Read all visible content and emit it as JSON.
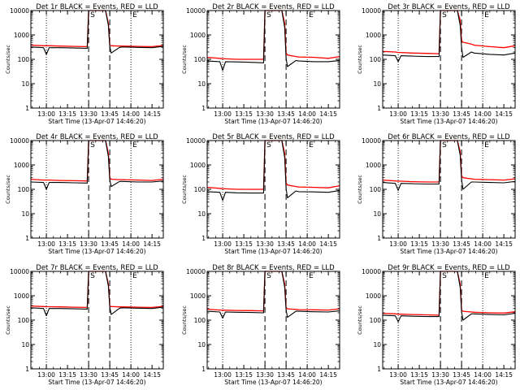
{
  "figure": {
    "x_tick_labels": [
      "13:00",
      "13:15",
      "13:30",
      "13:45",
      "14:00",
      "14:15"
    ],
    "y_tick_labels": [
      "1",
      "10",
      "100",
      "1000",
      "10000"
    ],
    "ylabel": "Counts/sec",
    "xlabel": "Start Time (13-Apr-07 14:46:20)",
    "colors": {
      "events": "#000000",
      "lld": "#ff0000",
      "axes": "#000000"
    }
  },
  "chart_data": [
    {
      "type": "line",
      "title": "Det 1r BLACK = Events, RED = LLD",
      "y_scale": "log",
      "ylim": [
        1,
        10000
      ],
      "xlim": [
        "12:49",
        "14:23"
      ],
      "grid": false,
      "markers": {
        "dotted": [
          "13:00",
          "14:00"
        ],
        "dashed": [
          "13:30",
          "13:45"
        ],
        "letters": [
          "S",
          "E"
        ]
      },
      "x": [
        "12:49",
        "12:58",
        "13:00",
        "13:02",
        "13:10",
        "13:20",
        "13:29",
        "13:30",
        "13:33",
        "13:40",
        "13:42",
        "13:44",
        "13:45",
        "13:46",
        "13:52",
        "13:54",
        "14:05",
        "14:15",
        "14:23"
      ],
      "series": [
        {
          "name": "Events",
          "values": [
            320,
            300,
            160,
            300,
            300,
            290,
            285,
            10000,
            10000,
            10000,
            10000,
            2500,
            350,
            180,
            310,
            320,
            310,
            300,
            340
          ]
        },
        {
          "name": "LLD",
          "values": [
            380,
            360,
            360,
            360,
            350,
            340,
            330,
            10000,
            10000,
            10000,
            10000,
            3000,
            380,
            360,
            350,
            350,
            340,
            330,
            370
          ]
        }
      ]
    },
    {
      "type": "line",
      "title": "Det 2r BLACK = Events, RED = LLD",
      "y_scale": "log",
      "ylim": [
        1,
        10000
      ],
      "xlim": [
        "12:49",
        "14:23"
      ],
      "grid": false,
      "markers": {
        "dotted": [
          "13:00",
          "14:00"
        ],
        "dashed": [
          "13:30",
          "13:45"
        ],
        "letters": [
          "S",
          "E"
        ]
      },
      "x": [
        "12:49",
        "12:58",
        "13:00",
        "13:02",
        "13:10",
        "13:20",
        "13:29",
        "13:30",
        "13:33",
        "13:40",
        "13:42",
        "13:44",
        "13:45",
        "13:46",
        "13:52",
        "13:54",
        "14:05",
        "14:15",
        "14:23"
      ],
      "series": [
        {
          "name": "Events",
          "values": [
            85,
            80,
            35,
            80,
            78,
            75,
            72,
            10000,
            10000,
            10000,
            10000,
            2000,
            110,
            50,
            90,
            85,
            80,
            80,
            90
          ]
        },
        {
          "name": "LLD",
          "values": [
            120,
            110,
            105,
            105,
            100,
            100,
            100,
            10000,
            10000,
            10000,
            10000,
            3000,
            180,
            150,
            130,
            125,
            120,
            110,
            130
          ]
        }
      ]
    },
    {
      "type": "line",
      "title": "Det 3r BLACK = Events, RED = LLD",
      "y_scale": "log",
      "ylim": [
        1,
        10000
      ],
      "xlim": [
        "12:49",
        "14:23"
      ],
      "grid": false,
      "markers": {
        "dotted": [
          "13:00",
          "14:00"
        ],
        "dashed": [
          "13:30",
          "13:45"
        ],
        "letters": [
          "S",
          "E"
        ]
      },
      "x": [
        "12:49",
        "12:58",
        "13:00",
        "13:02",
        "13:10",
        "13:20",
        "13:29",
        "13:30",
        "13:33",
        "13:40",
        "13:42",
        "13:44",
        "13:45",
        "13:46",
        "13:52",
        "13:54",
        "14:05",
        "14:15",
        "14:23"
      ],
      "series": [
        {
          "name": "Events",
          "values": [
            150,
            140,
            80,
            140,
            135,
            130,
            130,
            10000,
            10000,
            10000,
            10000,
            2500,
            300,
            120,
            200,
            180,
            160,
            150,
            180
          ]
        },
        {
          "name": "LLD",
          "values": [
            210,
            200,
            190,
            190,
            180,
            175,
            170,
            10000,
            10000,
            10000,
            10000,
            4000,
            600,
            500,
            420,
            380,
            330,
            300,
            360
          ]
        }
      ]
    },
    {
      "type": "line",
      "title": "Det 4r BLACK = Events, RED = LLD",
      "y_scale": "log",
      "ylim": [
        1,
        10000
      ],
      "xlim": [
        "12:49",
        "14:23"
      ],
      "grid": false,
      "markers": {
        "dotted": [
          "13:00",
          "14:00"
        ],
        "dashed": [
          "13:30",
          "13:45"
        ],
        "letters": [
          "S",
          "E"
        ]
      },
      "x": [
        "12:49",
        "12:58",
        "13:00",
        "13:02",
        "13:10",
        "13:20",
        "13:29",
        "13:30",
        "13:33",
        "13:40",
        "13:42",
        "13:44",
        "13:45",
        "13:46",
        "13:52",
        "13:54",
        "14:05",
        "14:15",
        "14:23"
      ],
      "series": [
        {
          "name": "Events",
          "values": [
            200,
            190,
            100,
            190,
            190,
            185,
            180,
            10000,
            10000,
            10000,
            10000,
            2200,
            250,
            130,
            210,
            210,
            200,
            200,
            220
          ]
        },
        {
          "name": "LLD",
          "values": [
            260,
            240,
            240,
            240,
            230,
            225,
            220,
            10000,
            10000,
            10000,
            10000,
            3000,
            300,
            260,
            250,
            250,
            240,
            230,
            260
          ]
        }
      ]
    },
    {
      "type": "line",
      "title": "Det 5r BLACK = Events, RED = LLD",
      "y_scale": "log",
      "ylim": [
        1,
        10000
      ],
      "xlim": [
        "12:49",
        "14:23"
      ],
      "grid": false,
      "markers": {
        "dotted": [
          "13:00",
          "14:00"
        ],
        "dashed": [
          "13:30",
          "13:45"
        ],
        "letters": [
          "S",
          "E"
        ]
      },
      "x": [
        "12:49",
        "12:58",
        "13:00",
        "13:02",
        "13:10",
        "13:20",
        "13:29",
        "13:30",
        "13:33",
        "13:40",
        "13:42",
        "13:44",
        "13:45",
        "13:46",
        "13:52",
        "13:54",
        "14:05",
        "14:15",
        "14:23"
      ],
      "series": [
        {
          "name": "Events",
          "values": [
            80,
            75,
            35,
            75,
            72,
            70,
            70,
            10000,
            10000,
            10000,
            10000,
            2000,
            110,
            45,
            85,
            80,
            78,
            75,
            90
          ]
        },
        {
          "name": "LLD",
          "values": [
            120,
            110,
            105,
            105,
            100,
            100,
            100,
            10000,
            10000,
            10000,
            10000,
            3000,
            180,
            150,
            130,
            125,
            120,
            115,
            140
          ]
        }
      ]
    },
    {
      "type": "line",
      "title": "Det 6r BLACK = Events, RED = LLD",
      "y_scale": "log",
      "ylim": [
        1,
        10000
      ],
      "xlim": [
        "12:49",
        "14:23"
      ],
      "grid": false,
      "markers": {
        "dotted": [
          "13:00",
          "14:00"
        ],
        "dashed": [
          "13:30",
          "13:45"
        ],
        "letters": [
          "S",
          "E"
        ]
      },
      "x": [
        "12:49",
        "12:58",
        "13:00",
        "13:02",
        "13:10",
        "13:20",
        "13:29",
        "13:30",
        "13:33",
        "13:40",
        "13:42",
        "13:44",
        "13:45",
        "13:46",
        "13:52",
        "13:54",
        "14:05",
        "14:15",
        "14:23"
      ],
      "series": [
        {
          "name": "Events",
          "values": [
            190,
            175,
            90,
            175,
            170,
            165,
            165,
            10000,
            10000,
            10000,
            10000,
            2500,
            250,
            100,
            200,
            200,
            190,
            185,
            210
          ]
        },
        {
          "name": "LLD",
          "values": [
            240,
            220,
            215,
            215,
            205,
            200,
            200,
            10000,
            10000,
            10000,
            10000,
            3500,
            360,
            300,
            270,
            260,
            250,
            240,
            270
          ]
        }
      ]
    },
    {
      "type": "line",
      "title": "Det 7r BLACK = Events, RED = LLD",
      "y_scale": "log",
      "ylim": [
        1,
        10000
      ],
      "xlim": [
        "12:49",
        "14:23"
      ],
      "grid": false,
      "markers": {
        "dotted": [
          "13:00",
          "14:00"
        ],
        "dashed": [
          "13:30",
          "13:45"
        ],
        "letters": [
          "S",
          "E"
        ]
      },
      "x": [
        "12:49",
        "12:58",
        "13:00",
        "13:02",
        "13:10",
        "13:20",
        "13:29",
        "13:30",
        "13:33",
        "13:40",
        "13:42",
        "13:44",
        "13:45",
        "13:46",
        "13:52",
        "13:54",
        "14:05",
        "14:15",
        "14:23"
      ],
      "series": [
        {
          "name": "Events",
          "values": [
            320,
            300,
            150,
            300,
            300,
            290,
            285,
            10000,
            10000,
            10000,
            10000,
            2500,
            350,
            170,
            310,
            320,
            310,
            300,
            340
          ]
        },
        {
          "name": "LLD",
          "values": [
            380,
            360,
            355,
            355,
            350,
            340,
            330,
            10000,
            10000,
            10000,
            10000,
            3000,
            380,
            360,
            350,
            350,
            340,
            330,
            370
          ]
        }
      ]
    },
    {
      "type": "line",
      "title": "Det 8r BLACK = Events, RED = LLD",
      "y_scale": "log",
      "ylim": [
        1,
        10000
      ],
      "xlim": [
        "12:49",
        "14:23"
      ],
      "grid": false,
      "markers": {
        "dotted": [
          "13:00",
          "14:00"
        ],
        "dashed": [
          "13:30",
          "13:45"
        ],
        "letters": [
          "S",
          "E"
        ]
      },
      "x": [
        "12:49",
        "12:58",
        "13:00",
        "13:02",
        "13:10",
        "13:20",
        "13:29",
        "13:30",
        "13:33",
        "13:40",
        "13:42",
        "13:44",
        "13:45",
        "13:46",
        "13:52",
        "13:54",
        "14:05",
        "14:15",
        "14:23"
      ],
      "series": [
        {
          "name": "Events",
          "values": [
            230,
            215,
            120,
            215,
            210,
            205,
            200,
            10000,
            10000,
            10000,
            10000,
            2200,
            270,
            130,
            230,
            230,
            220,
            215,
            240
          ]
        },
        {
          "name": "LLD",
          "values": [
            280,
            260,
            255,
            255,
            250,
            245,
            240,
            10000,
            10000,
            10000,
            10000,
            3000,
            330,
            290,
            275,
            270,
            265,
            260,
            290
          ]
        }
      ]
    },
    {
      "type": "line",
      "title": "Det 9r BLACK = Events, RED = LLD",
      "y_scale": "log",
      "ylim": [
        1,
        10000
      ],
      "xlim": [
        "12:49",
        "14:23"
      ],
      "grid": false,
      "markers": {
        "dotted": [
          "13:00",
          "14:00"
        ],
        "dashed": [
          "13:30",
          "13:45"
        ],
        "letters": [
          "S",
          "E"
        ]
      },
      "x": [
        "12:49",
        "12:58",
        "13:00",
        "13:02",
        "13:10",
        "13:20",
        "13:29",
        "13:30",
        "13:33",
        "13:40",
        "13:42",
        "13:44",
        "13:45",
        "13:46",
        "13:52",
        "13:54",
        "14:05",
        "14:15",
        "14:23"
      ],
      "series": [
        {
          "name": "Events",
          "values": [
            160,
            150,
            85,
            150,
            145,
            140,
            140,
            10000,
            10000,
            10000,
            10000,
            2200,
            220,
            100,
            180,
            180,
            170,
            165,
            190
          ]
        },
        {
          "name": "LLD",
          "values": [
            190,
            180,
            175,
            175,
            170,
            165,
            160,
            10000,
            10000,
            10000,
            10000,
            3000,
            260,
            230,
            215,
            210,
            200,
            195,
            220
          ]
        }
      ]
    }
  ]
}
